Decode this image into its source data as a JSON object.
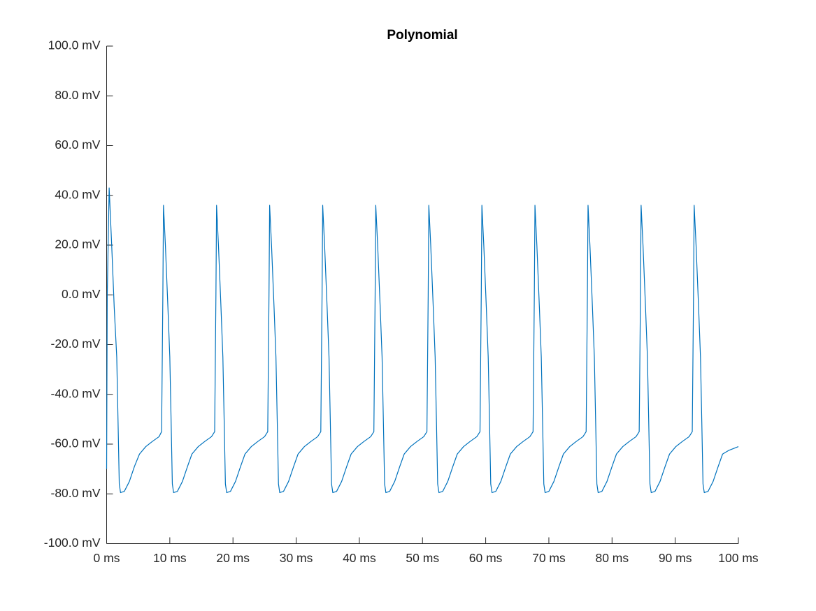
{
  "chart_data": {
    "type": "line",
    "title": "Polynomial",
    "color": "#0072bd",
    "x": [
      0,
      0.1,
      0.4,
      0.8,
      1.2,
      1.6,
      1.8,
      2.0,
      2.2,
      2.8,
      3.6,
      4.4,
      5.2,
      6.2,
      7.2,
      8.3,
      8.7,
      8.9,
      9.0,
      9.3,
      9.7,
      10.0,
      10.2,
      10.4,
      10.6,
      11.2,
      12.0,
      12.8,
      13.5,
      14.5,
      15.5,
      16.6,
      17.1,
      17.3,
      17.4,
      17.7,
      18.1,
      18.4,
      18.6,
      18.8,
      19.0,
      19.6,
      20.4,
      21.2,
      21.9,
      22.9,
      23.9,
      25.0,
      25.5,
      25.7,
      25.8,
      26.1,
      26.5,
      26.8,
      27.0,
      27.2,
      27.4,
      28.0,
      28.8,
      29.6,
      30.3,
      31.3,
      32.3,
      33.4,
      33.9,
      34.1,
      34.2,
      34.5,
      34.9,
      35.2,
      35.4,
      35.6,
      35.8,
      36.4,
      37.2,
      38.0,
      38.7,
      39.7,
      40.7,
      41.8,
      42.3,
      42.5,
      42.6,
      42.9,
      43.3,
      43.6,
      43.8,
      44.0,
      44.2,
      44.8,
      45.6,
      46.4,
      47.1,
      48.1,
      49.1,
      50.2,
      50.7,
      50.9,
      51.0,
      51.3,
      51.7,
      52.0,
      52.2,
      52.4,
      52.6,
      53.2,
      54.0,
      54.8,
      55.5,
      56.5,
      57.5,
      58.6,
      59.1,
      59.3,
      59.4,
      59.7,
      60.1,
      60.4,
      60.6,
      60.8,
      61.0,
      61.6,
      62.4,
      63.2,
      63.9,
      64.9,
      65.9,
      67.0,
      67.5,
      67.7,
      67.8,
      68.1,
      68.5,
      68.8,
      69.0,
      69.2,
      69.4,
      70.0,
      70.8,
      71.6,
      72.3,
      73.3,
      74.3,
      75.4,
      75.9,
      76.1,
      76.2,
      76.5,
      76.9,
      77.2,
      77.4,
      77.6,
      77.8,
      78.4,
      79.2,
      80.0,
      80.7,
      81.7,
      82.7,
      83.8,
      84.3,
      84.5,
      84.6,
      84.9,
      85.3,
      85.6,
      85.8,
      86.0,
      86.2,
      86.8,
      87.6,
      88.4,
      89.1,
      90.1,
      91.1,
      92.2,
      92.7,
      92.9,
      93.0,
      93.3,
      93.7,
      94.0,
      94.2,
      94.4,
      94.6,
      95.2,
      96.0,
      96.8,
      97.5,
      98.5,
      100
    ],
    "values": [
      -70,
      0,
      43,
      20,
      -5,
      -25,
      -50,
      -76,
      -79.5,
      -79,
      -75,
      -69,
      -64,
      -61,
      -59,
      -57,
      -55,
      0,
      36,
      20,
      -5,
      -25,
      -50,
      -76,
      -79.5,
      -79,
      -75,
      -69,
      -64,
      -61,
      -59,
      -57,
      -55,
      0,
      36,
      20,
      -5,
      -25,
      -50,
      -76,
      -79.5,
      -79,
      -75,
      -69,
      -64,
      -61,
      -59,
      -57,
      -55,
      0,
      36,
      20,
      -5,
      -25,
      -50,
      -76,
      -79.5,
      -79,
      -75,
      -69,
      -64,
      -61,
      -59,
      -57,
      -55,
      0,
      36,
      20,
      -5,
      -25,
      -50,
      -76,
      -79.5,
      -79,
      -75,
      -69,
      -64,
      -61,
      -59,
      -57,
      -55,
      0,
      36,
      20,
      -5,
      -25,
      -50,
      -76,
      -79.5,
      -79,
      -75,
      -69,
      -64,
      -61,
      -59,
      -57,
      -55,
      0,
      36,
      20,
      -5,
      -25,
      -50,
      -76,
      -79.5,
      -79,
      -75,
      -69,
      -64,
      -61,
      -59,
      -57,
      -55,
      0,
      36,
      20,
      -5,
      -25,
      -50,
      -76,
      -79.5,
      -79,
      -75,
      -69,
      -64,
      -61,
      -59,
      -57,
      -55,
      0,
      36,
      20,
      -5,
      -25,
      -50,
      -76,
      -79.5,
      -79,
      -75,
      -69,
      -64,
      -61,
      -59,
      -57,
      -55,
      0,
      36,
      20,
      -5,
      -25,
      -50,
      -76,
      -79.5,
      -79,
      -75,
      -69,
      -64,
      -61,
      -59,
      -57,
      -55,
      0,
      36,
      20,
      -5,
      -25,
      -50,
      -76,
      -79.5,
      -79,
      -75,
      -69,
      -64,
      -61,
      -59,
      -57,
      -55,
      0,
      36,
      20,
      -5,
      -25,
      -50,
      -76,
      -79.5,
      -79,
      -75,
      -69,
      -64,
      -62.5,
      -61
    ],
    "xlim": [
      0,
      100
    ],
    "ylim": [
      -100,
      100
    ],
    "xticks": [
      {
        "value": 0,
        "label": "0 ms"
      },
      {
        "value": 10,
        "label": "10 ms"
      },
      {
        "value": 20,
        "label": "20 ms"
      },
      {
        "value": 30,
        "label": "30 ms"
      },
      {
        "value": 40,
        "label": "40 ms"
      },
      {
        "value": 50,
        "label": "50 ms"
      },
      {
        "value": 60,
        "label": "60 ms"
      },
      {
        "value": 70,
        "label": "70 ms"
      },
      {
        "value": 80,
        "label": "80 ms"
      },
      {
        "value": 90,
        "label": "90 ms"
      },
      {
        "value": 100,
        "label": "100 ms"
      }
    ],
    "yticks": [
      {
        "value": -100,
        "label": "-100.0 mV"
      },
      {
        "value": -80,
        "label": "-80.0 mV"
      },
      {
        "value": -60,
        "label": "-60.0 mV"
      },
      {
        "value": -40,
        "label": "-40.0 mV"
      },
      {
        "value": -20,
        "label": "-20.0 mV"
      },
      {
        "value": 0,
        "label": "0.0 mV"
      },
      {
        "value": 20,
        "label": "20.0 mV"
      },
      {
        "value": 40,
        "label": "40.0 mV"
      },
      {
        "value": 60,
        "label": "60.0 mV"
      },
      {
        "value": 80,
        "label": "80.0 mV"
      },
      {
        "value": 100,
        "label": "100.0 mV"
      }
    ]
  }
}
